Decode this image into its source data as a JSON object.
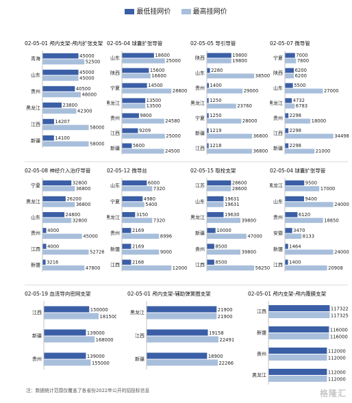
{
  "legend": {
    "min_label": "最低挂网价",
    "max_label": "最高挂网价"
  },
  "colors": {
    "min": "#3b5fa6",
    "max": "#a8bfdc"
  },
  "note": "注：数据统计范围仅覆盖了各省份2022年公开的招投标信息",
  "watermark": "格隆汇",
  "chart_data": [
    {
      "type": "bar",
      "title": "02-05-01 颅内支架-颅内扩张支架",
      "categories": [
        "青海",
        "山东",
        "贵州",
        "黑龙江",
        "江西",
        "新疆"
      ],
      "series": [
        {
          "name": "最低挂网价",
          "values": [
            45000,
            45000,
            40500,
            23800,
            14207,
            14100
          ]
        },
        {
          "name": "最高挂网价",
          "values": [
            52500,
            45000,
            48000,
            42300,
            58000,
            58000
          ]
        }
      ]
    },
    {
      "type": "bar",
      "title": "02-05-04 球囊扩张导管",
      "categories": [
        "山东",
        "陕西",
        "宁夏",
        "黑龙江",
        "贵州",
        "江西",
        "新疆"
      ],
      "series": [
        {
          "name": "最低挂网价",
          "values": [
            18600,
            15600,
            14500,
            13500,
            9800,
            9209,
            5600
          ]
        },
        {
          "name": "最高挂网价",
          "values": [
            25000,
            16600,
            28800,
            13500,
            24580,
            25000,
            24500
          ]
        }
      ]
    },
    {
      "type": "bar",
      "title": "02-05-05 导引导管",
      "categories": [
        "陕西",
        "山东",
        "贵州",
        "黑龙江",
        "宁夏",
        "新疆",
        "江西"
      ],
      "series": [
        {
          "name": "最低挂网价",
          "values": [
            19800,
            2280,
            1400,
            1250,
            1250,
            1219,
            1218
          ]
        },
        {
          "name": "最高挂网价",
          "values": [
            19800,
            38500,
            29000,
            23760,
            28000,
            36800,
            36800
          ]
        }
      ]
    },
    {
      "type": "bar",
      "title": "02-05-07 微导管",
      "categories": [
        "宁夏",
        "陕西",
        "山东",
        "黑龙江",
        "贵州",
        "江西",
        "新疆"
      ],
      "series": [
        {
          "name": "最低挂网价",
          "values": [
            7000,
            6200,
            5500,
            4732,
            2298,
            2298,
            2298
          ]
        },
        {
          "name": "最高挂网价",
          "values": [
            7800,
            6200,
            27000,
            6783,
            18000,
            34498,
            21000
          ]
        }
      ]
    },
    {
      "type": "bar",
      "title": "02-05-08 神经介入治疗导管",
      "categories": [
        "宁夏",
        "黑龙江",
        "山东",
        "贵州",
        "江西",
        "新疆"
      ],
      "series": [
        {
          "name": "最低挂网价",
          "values": [
            32800,
            26200,
            24800,
            4000,
            4000,
            3216
          ]
        },
        {
          "name": "最高挂网价",
          "values": [
            36800,
            36800,
            32800,
            45000,
            52726,
            47800
          ]
        }
      ]
    },
    {
      "type": "bar",
      "title": "02-05-12 微导丝",
      "categories": [
        "山东",
        "宁夏",
        "黑龙江",
        "贵州",
        "新疆",
        "江西"
      ],
      "series": [
        {
          "name": "最低挂网价",
          "values": [
            6000,
            4980,
            3150,
            2169,
            2169,
            2168
          ]
        },
        {
          "name": "最高挂网价",
          "values": [
            7320,
            5400,
            7320,
            8996,
            9000,
            12000
          ]
        }
      ]
    },
    {
      "type": "bar",
      "title": "02-05-15 取栓支架",
      "categories": [
        "江苏",
        "山东",
        "黑龙江",
        "新疆",
        "贵州",
        "江西"
      ],
      "series": [
        {
          "name": "最低挂网价",
          "values": [
            28600,
            19631,
            19630,
            10000,
            8500,
            8500
          ]
        },
        {
          "name": "最高挂网价",
          "values": [
            28600,
            19631,
            39800,
            47000,
            39800,
            56250
          ]
        }
      ]
    },
    {
      "type": "bar",
      "title": "02-05-04 球囊扩张导管",
      "categories": [
        "黑龙江",
        "山东",
        "贵州",
        "安徽",
        "新疆",
        "江西"
      ],
      "series": [
        {
          "name": "最低挂网价",
          "values": [
            9500,
            9400,
            6120,
            3470,
            1464,
            1400
          ]
        },
        {
          "name": "最高挂网价",
          "values": [
            17000,
            24000,
            18850,
            8133,
            24000,
            20908
          ]
        }
      ]
    },
    {
      "type": "bar",
      "title": "02-05-19 血流导向密网支架",
      "categories": [
        "江西",
        "新疆",
        "贵州"
      ],
      "series": [
        {
          "name": "最低挂网价",
          "values": [
            150000,
            139000,
            139000
          ]
        },
        {
          "name": "最高挂网价",
          "values": [
            181500,
            168000,
            155000
          ]
        }
      ]
    },
    {
      "type": "bar",
      "title": "02-05-01 颅内支架-辅助弹簧圈支架",
      "categories": [
        "黑龙江",
        "江西",
        "新疆"
      ],
      "series": [
        {
          "name": "最低挂网价",
          "values": [
            21900,
            19158,
            18900
          ]
        },
        {
          "name": "最高挂网价",
          "values": [
            21900,
            22491,
            22266
          ]
        }
      ]
    },
    {
      "type": "bar",
      "title": "02-05-01 颅内支架-颅内覆膜支架",
      "categories": [
        "江西",
        "新疆",
        "贵州",
        "黑龙江"
      ],
      "series": [
        {
          "name": "最低挂网价",
          "values": [
            117322,
            116000,
            112000,
            112000
          ]
        },
        {
          "name": "最高挂网价",
          "values": [
            117325,
            116000,
            112000,
            112000
          ]
        }
      ]
    }
  ]
}
